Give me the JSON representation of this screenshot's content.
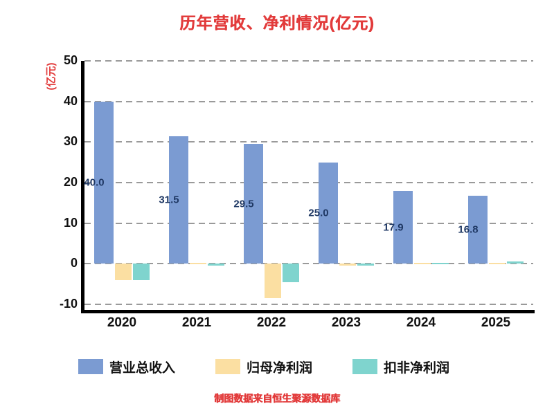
{
  "title": "历年营收、净利情况(亿元)",
  "y_axis_label": "(亿元)",
  "caption": "制图数据来自恒生聚源数据库",
  "colors": {
    "revenue": "#7B9BD2",
    "net_profit": "#FBDFA2",
    "non_gaap_profit": "#7FD4CE",
    "title_red": "#E23B3B",
    "grid": "#9a9a9a",
    "axis": "#000000",
    "bar_label": "#1F3864"
  },
  "chart_data": {
    "type": "bar",
    "title": "历年营收、净利情况(亿元)",
    "ylabel": "(亿元)",
    "xlabel": "",
    "categories": [
      "2020",
      "2021",
      "2022",
      "2023",
      "2024",
      "2025"
    ],
    "series": [
      {
        "key": "revenue",
        "name": "营业总收入",
        "color": "#7B9BD2",
        "values": [
          40.0,
          31.5,
          29.5,
          25.0,
          17.9,
          16.8
        ],
        "labels": [
          "40.0",
          "31.5",
          "29.5",
          "25.0",
          "17.9",
          "16.8"
        ]
      },
      {
        "key": "net-profit",
        "name": "归母净利润",
        "color": "#FBDFA2",
        "values": [
          -4.1,
          0.3,
          -8.5,
          -0.3,
          0.3,
          0.3
        ],
        "labels": []
      },
      {
        "key": "non-gaap-profit",
        "name": "扣非净利润",
        "color": "#7FD4CE",
        "values": [
          -4.0,
          -0.3,
          -4.5,
          -0.3,
          0.3,
          0.5
        ],
        "labels": []
      }
    ],
    "ylim": [
      -10,
      50
    ],
    "yticks": [
      50,
      40,
      30,
      20,
      10,
      0,
      -10
    ],
    "grid": "dashed-horizontal",
    "legend_position": "bottom"
  }
}
